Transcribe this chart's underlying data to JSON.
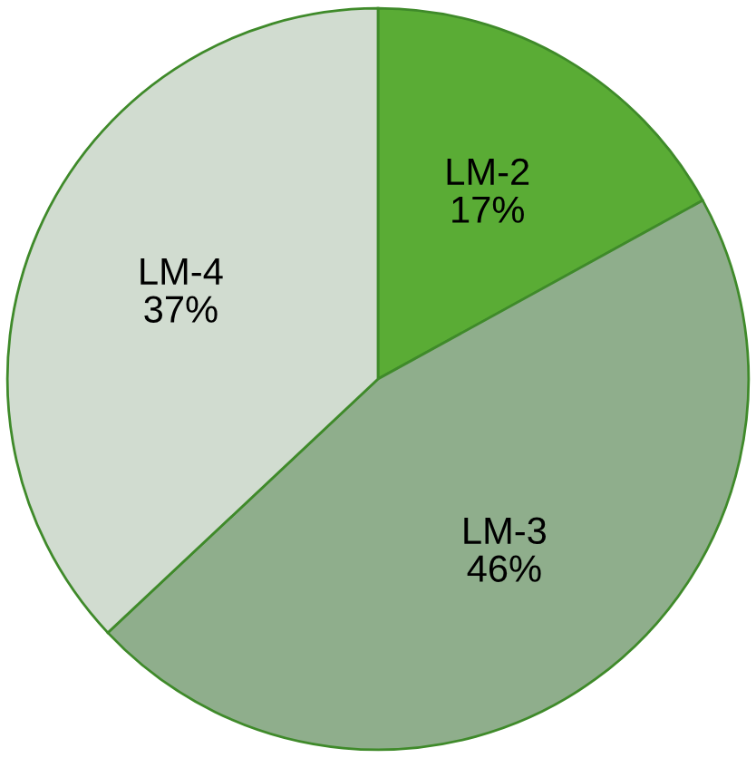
{
  "chart_data": {
    "type": "pie",
    "categories": [
      "LM-2",
      "LM-3",
      "LM-4"
    ],
    "values": [
      17,
      46,
      37
    ],
    "value_labels": [
      "17%",
      "46%",
      "37%"
    ],
    "colors": [
      "#5aac35",
      "#8fae8c",
      "#d1dcd0"
    ]
  }
}
